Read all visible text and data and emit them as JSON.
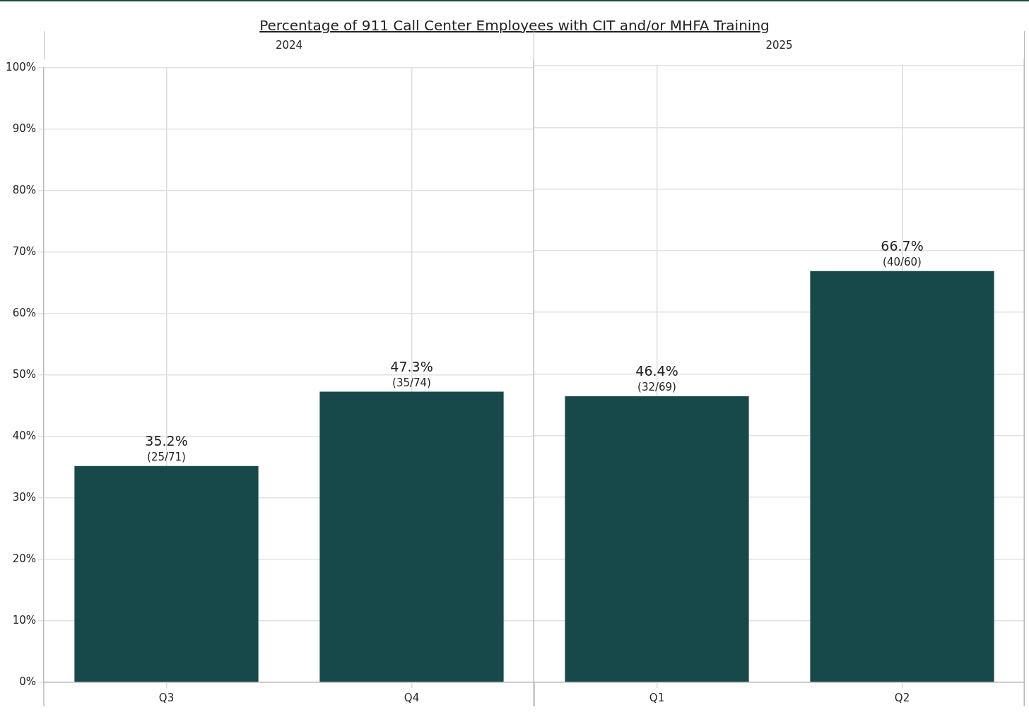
{
  "chart_data": [
    {
      "type": "bar",
      "title": "Percentage of 911 Call Center Employees with CIT and/or MHFA Training",
      "subtitle": "2024",
      "categories": [
        "Q3",
        "Q4"
      ],
      "values": [
        35.2,
        47.3
      ],
      "color": "#18494a",
      "value_labels": [
        "35.2%",
        "47.3%"
      ],
      "annotations": [
        {
          "text": "(25/71)",
          "x": "Q3",
          "y": 35.2
        },
        {
          "text": "(35/74)",
          "x": "Q4",
          "y": 47.3
        }
      ],
      "ylim": [
        0,
        100
      ],
      "yticks": [
        {
          "value": 0,
          "label": "0%"
        },
        {
          "value": 10,
          "label": "10%"
        },
        {
          "value": 20,
          "label": "20%"
        },
        {
          "value": 30,
          "label": "30%"
        },
        {
          "value": 40,
          "label": "40%"
        },
        {
          "value": 50,
          "label": "50%"
        },
        {
          "value": 60,
          "label": "60%"
        },
        {
          "value": 70,
          "label": "70%"
        },
        {
          "value": 80,
          "label": "80%"
        },
        {
          "value": 90,
          "label": "90%"
        },
        {
          "value": 100,
          "label": "100%"
        }
      ],
      "grid": true,
      "legend": false
    },
    {
      "type": "bar",
      "subtitle": "2025",
      "categories": [
        "Q1",
        "Q2"
      ],
      "values": [
        46.4,
        66.7
      ],
      "color": "#18494a",
      "value_labels": [
        "46.4%",
        "66.7%"
      ],
      "annotations": [
        {
          "text": "(32/69)",
          "x": "Q1",
          "y": 46.4
        },
        {
          "text": "(40/60)",
          "x": "Q2",
          "y": 66.7
        }
      ],
      "ylim": [
        0,
        100
      ],
      "yticks": [
        0,
        10,
        20,
        30,
        40,
        50,
        60,
        70,
        80,
        90,
        100
      ],
      "grid": true,
      "legend": false,
      "tick_labels": "x"
    }
  ]
}
